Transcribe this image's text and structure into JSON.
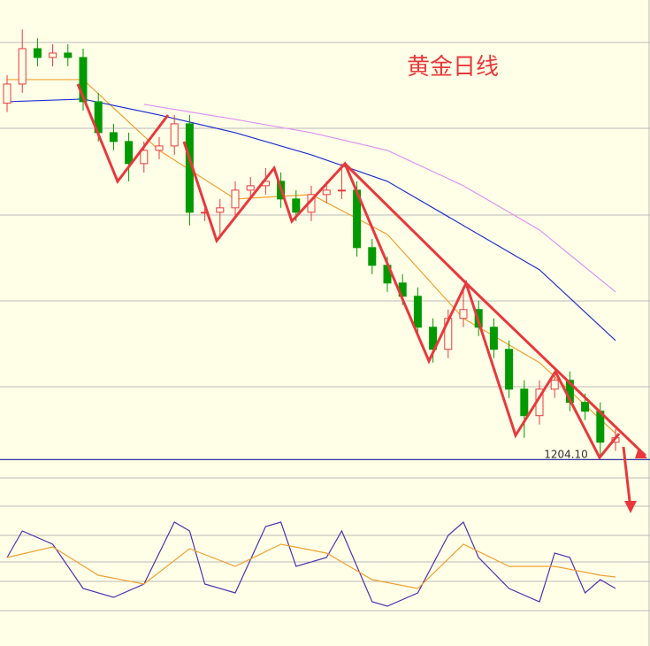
{
  "chart_data": {
    "type": "candlestick",
    "title": "黄金日线",
    "title_color": "#e8383d",
    "ylim": [
      1200,
      1360
    ],
    "up_color": "#e8383d",
    "down_color": "#009a00",
    "open": [
      1325,
      1331.5,
      1343.5,
      1340.5,
      1342,
      1340.5,
      1325.5,
      1315,
      1312,
      1304.5,
      1309,
      1310.5,
      1318,
      1288,
      1288,
      1289.5,
      1295.5,
      1297,
      1298.5,
      1292.5,
      1288,
      1294,
      1295.5,
      1295.5,
      1276,
      1270,
      1264,
      1259.5,
      1249,
      1241.5,
      1252,
      1255,
      1249,
      1241.5,
      1228,
      1219,
      1228,
      1231,
      1223.5,
      1220.5,
      1210
    ],
    "high": [
      1334.5,
      1350,
      1347,
      1345,
      1345,
      1343.5,
      1328.5,
      1318,
      1315,
      1312,
      1313.5,
      1321,
      1321,
      1291,
      1292.5,
      1298.5,
      1300,
      1303,
      1301.5,
      1295.5,
      1297,
      1298.5,
      1304.5,
      1298.5,
      1279,
      1273,
      1267,
      1262.5,
      1252,
      1255,
      1262,
      1258,
      1252,
      1244.5,
      1231,
      1231,
      1234,
      1234,
      1226.5,
      1223.5,
      1214.5
    ],
    "low": [
      1322,
      1328.5,
      1337.5,
      1337.5,
      1337.5,
      1322.5,
      1312,
      1309,
      1298.5,
      1301.5,
      1306,
      1307.5,
      1283.5,
      1285,
      1279,
      1286.5,
      1292.5,
      1294,
      1289.5,
      1285,
      1285,
      1291,
      1292.5,
      1273,
      1267,
      1261,
      1256.5,
      1246,
      1237,
      1238.5,
      1249,
      1246,
      1238.5,
      1225,
      1211.5,
      1216,
      1225,
      1220.5,
      1217.5,
      1205,
      1207
    ],
    "close": [
      1331.5,
      1343.5,
      1340.5,
      1342,
      1340.5,
      1325.5,
      1315,
      1312,
      1304.5,
      1309,
      1310.5,
      1318,
      1288,
      1288,
      1289.5,
      1295.5,
      1297,
      1298.5,
      1292.5,
      1288,
      1294,
      1295.5,
      1295.5,
      1276,
      1270,
      1264,
      1259.5,
      1249,
      1241.5,
      1252,
      1255,
      1249,
      1241.5,
      1228,
      1219,
      1228,
      1231,
      1223.5,
      1220.5,
      1210,
      1211.5
    ],
    "lines": [
      {
        "color": "#f0a030",
        "x": [
          0,
          5,
          10,
          15,
          20,
          25,
          30,
          35,
          40
        ],
        "values": [
          1333,
          1333,
          1309,
          1292.5,
          1294,
          1280.5,
          1252,
          1237,
          1213
        ]
      },
      {
        "color": "#2030d0",
        "x": [
          0,
          5,
          10,
          15,
          20,
          25,
          30,
          35,
          40
        ],
        "values": [
          1325.5,
          1326.4,
          1321,
          1315,
          1307.5,
          1298.5,
          1283.5,
          1268.5,
          1244.5
        ]
      },
      {
        "color": "#e090f0",
        "x": [
          9,
          15,
          20,
          25,
          30,
          35,
          40
        ],
        "values": [
          1324.6,
          1319.5,
          1315,
          1309,
          1297,
          1282,
          1261
        ]
      }
    ],
    "price_line": {
      "value": 1204.1,
      "label": "1204.10"
    },
    "oscillator": {
      "ylim": [
        0,
        100
      ],
      "series": [
        {
          "color": "#5030b0",
          "x": [
            0,
            1,
            3,
            5,
            7,
            9,
            11,
            12,
            13,
            15,
            17,
            18,
            19,
            21,
            22,
            24,
            25,
            27,
            29,
            30,
            31,
            33,
            35,
            36,
            37,
            38,
            39,
            40
          ],
          "values": [
            60,
            90,
            75,
            25,
            15,
            30,
            100,
            90,
            30,
            20,
            95,
            100,
            50,
            60,
            90,
            10,
            5,
            20,
            85,
            100,
            60,
            25,
            10,
            65,
            60,
            20,
            35,
            25
          ]
        },
        {
          "color": "#f0a030",
          "x": [
            0,
            3,
            6,
            9,
            12,
            15,
            18,
            21,
            24,
            27,
            30,
            33,
            36,
            39,
            40
          ],
          "values": [
            60,
            72,
            40,
            30,
            70,
            50,
            75,
            65,
            35,
            25,
            75,
            50,
            50,
            40,
            38
          ]
        }
      ]
    }
  }
}
